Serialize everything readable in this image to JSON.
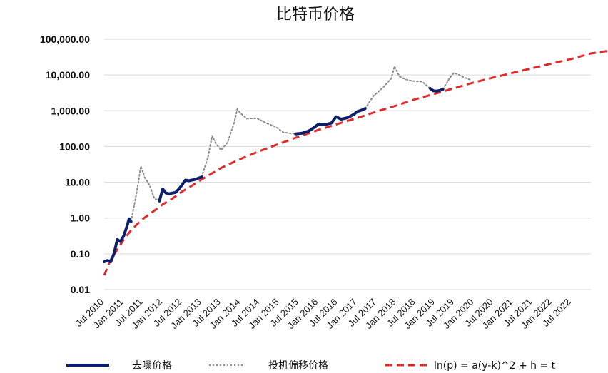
{
  "chart_data": {
    "type": "line",
    "title": "比特币价格",
    "xlabel": "",
    "ylabel": "",
    "y_scale": "log",
    "ylim": [
      0.01,
      100000
    ],
    "x_range": [
      "2010-07-01",
      "2023-01-01"
    ],
    "grid": "horizontal",
    "legend_position": "bottom",
    "y_ticks": [
      {
        "value": 0.01,
        "label": "0.01"
      },
      {
        "value": 0.1,
        "label": "0.10"
      },
      {
        "value": 1,
        "label": "1.00"
      },
      {
        "value": 10,
        "label": "10.00"
      },
      {
        "value": 100,
        "label": "100.00"
      },
      {
        "value": 1000,
        "label": "1,000.00"
      },
      {
        "value": 10000,
        "label": "10,000.00"
      },
      {
        "value": 100000,
        "label": "100,000.00"
      }
    ],
    "x_ticks": [
      {
        "date": "2010-07-01",
        "label": "Jul 2010"
      },
      {
        "date": "2011-01-01",
        "label": "Jan 2011"
      },
      {
        "date": "2011-07-01",
        "label": "Jul 2011"
      },
      {
        "date": "2012-01-01",
        "label": "Jan 2012"
      },
      {
        "date": "2012-07-01",
        "label": "Jul 2012"
      },
      {
        "date": "2013-01-01",
        "label": "Jan 2013"
      },
      {
        "date": "2013-07-01",
        "label": "Jul 2013"
      },
      {
        "date": "2014-01-01",
        "label": "Jan 2014"
      },
      {
        "date": "2014-07-01",
        "label": "Jul 2014"
      },
      {
        "date": "2015-01-01",
        "label": "Jan 2015"
      },
      {
        "date": "2015-07-01",
        "label": "Jul 2015"
      },
      {
        "date": "2016-01-01",
        "label": "Jan 2016"
      },
      {
        "date": "2016-07-01",
        "label": "Jul 2016"
      },
      {
        "date": "2017-01-01",
        "label": "Jan 2017"
      },
      {
        "date": "2017-07-01",
        "label": "Jul 2017"
      },
      {
        "date": "2018-01-01",
        "label": "Jan 2018"
      },
      {
        "date": "2018-07-01",
        "label": "Jul 2018"
      },
      {
        "date": "2019-01-01",
        "label": "Jan 2019"
      },
      {
        "date": "2019-07-01",
        "label": "Jul 2019"
      },
      {
        "date": "2020-01-01",
        "label": "Jan 2020"
      },
      {
        "date": "2020-07-01",
        "label": "Jul 2020"
      },
      {
        "date": "2021-01-01",
        "label": "Jan 2021"
      },
      {
        "date": "2021-07-01",
        "label": "Jul 2021"
      },
      {
        "date": "2022-01-01",
        "label": "Jan 2022"
      },
      {
        "date": "2022-07-01",
        "label": "Jul 2022"
      }
    ],
    "series": [
      {
        "name": "去噪价格",
        "style": "solid-thick",
        "color": "#0d1f6b",
        "segments": [
          [
            [
              "2010-07-01",
              0.06
            ],
            [
              "2010-08-01",
              0.065
            ],
            [
              "2010-09-01",
              0.06
            ],
            [
              "2010-10-01",
              0.1
            ],
            [
              "2010-11-01",
              0.25
            ],
            [
              "2010-12-01",
              0.22
            ],
            [
              "2011-01-01",
              0.32
            ],
            [
              "2011-02-01",
              0.6
            ],
            [
              "2011-02-20",
              0.95
            ],
            [
              "2011-03-10",
              0.8
            ]
          ],
          [
            [
              "2011-12-01",
              3.0
            ],
            [
              "2012-01-01",
              6.5
            ],
            [
              "2012-02-01",
              5.0
            ],
            [
              "2012-03-01",
              4.8
            ],
            [
              "2012-04-01",
              5.0
            ],
            [
              "2012-05-01",
              5.2
            ],
            [
              "2012-06-01",
              6.5
            ],
            [
              "2012-07-01",
              8.5
            ],
            [
              "2012-08-01",
              11.5
            ],
            [
              "2012-09-01",
              11.0
            ],
            [
              "2012-10-01",
              11.5
            ],
            [
              "2012-11-01",
              12.0
            ],
            [
              "2012-12-01",
              13.0
            ],
            [
              "2013-01-01",
              14.0
            ]
          ],
          [
            [
              "2015-06-01",
              225
            ],
            [
              "2015-08-01",
              235
            ],
            [
              "2015-10-01",
              270
            ],
            [
              "2015-11-15",
              330
            ],
            [
              "2016-01-01",
              420
            ],
            [
              "2016-03-01",
              410
            ],
            [
              "2016-05-01",
              450
            ],
            [
              "2016-06-15",
              680
            ],
            [
              "2016-08-01",
              580
            ],
            [
              "2016-10-01",
              640
            ],
            [
              "2016-12-01",
              800
            ],
            [
              "2017-01-01",
              950
            ],
            [
              "2017-02-15",
              1050
            ],
            [
              "2017-03-15",
              1150
            ]
          ],
          [
            [
              "2018-11-15",
              4200
            ],
            [
              "2018-12-15",
              3600
            ],
            [
              "2019-01-15",
              3550
            ],
            [
              "2019-02-15",
              3700
            ],
            [
              "2019-03-15",
              4000
            ]
          ]
        ]
      },
      {
        "name": "投机偏移价格",
        "style": "dotted",
        "color": "#8c8c8c",
        "segments": [
          [
            [
              "2011-03-10",
              0.8
            ],
            [
              "2011-05-01",
              5.0
            ],
            [
              "2011-06-10",
              28.0
            ],
            [
              "2011-07-15",
              14.0
            ],
            [
              "2011-09-01",
              8.0
            ],
            [
              "2011-10-15",
              3.5
            ],
            [
              "2011-12-01",
              3.0
            ]
          ],
          [
            [
              "2013-01-01",
              14.0
            ],
            [
              "2013-03-01",
              50
            ],
            [
              "2013-04-10",
              200
            ],
            [
              "2013-05-15",
              120
            ],
            [
              "2013-07-01",
              80
            ],
            [
              "2013-09-01",
              130
            ],
            [
              "2013-11-01",
              450
            ],
            [
              "2013-12-01",
              1100
            ],
            [
              "2014-01-01",
              850
            ],
            [
              "2014-03-01",
              600
            ],
            [
              "2014-06-01",
              620
            ],
            [
              "2014-09-01",
              450
            ],
            [
              "2014-12-01",
              350
            ],
            [
              "2015-02-01",
              250
            ],
            [
              "2015-06-01",
              225
            ]
          ],
          [
            [
              "2017-03-15",
              1150
            ],
            [
              "2017-06-01",
              2600
            ],
            [
              "2017-09-01",
              4500
            ],
            [
              "2017-11-15",
              8000
            ],
            [
              "2017-12-15",
              17500
            ],
            [
              "2018-02-01",
              9000
            ],
            [
              "2018-04-01",
              7500
            ],
            [
              "2018-06-01",
              6800
            ],
            [
              "2018-09-01",
              6500
            ],
            [
              "2018-11-15",
              4200
            ]
          ],
          [
            [
              "2019-03-15",
              4000
            ],
            [
              "2019-05-15",
              8000
            ],
            [
              "2019-06-25",
              11500
            ],
            [
              "2019-08-01",
              10500
            ],
            [
              "2019-10-01",
              8500
            ],
            [
              "2019-12-01",
              7300
            ]
          ]
        ]
      },
      {
        "name": "ln(p) = a(y-k)^2 + h = t",
        "style": "dashed",
        "color": "#e02b2b",
        "points": [
          [
            "2010-07-01",
            0.025
          ],
          [
            "2010-09-01",
            0.07
          ],
          [
            "2010-11-01",
            0.13
          ],
          [
            "2011-01-01",
            0.25
          ],
          [
            "2011-03-01",
            0.42
          ],
          [
            "2011-05-01",
            0.65
          ],
          [
            "2011-07-01",
            0.95
          ],
          [
            "2011-10-01",
            1.5
          ],
          [
            "2012-01-01",
            2.4
          ],
          [
            "2012-04-01",
            3.5
          ],
          [
            "2012-07-01",
            5.5
          ],
          [
            "2012-10-01",
            8.0
          ],
          [
            "2013-01-01",
            12
          ],
          [
            "2013-07-01",
            25
          ],
          [
            "2014-01-01",
            45
          ],
          [
            "2014-07-01",
            75
          ],
          [
            "2015-01-01",
            120
          ],
          [
            "2015-07-01",
            190
          ],
          [
            "2016-01-01",
            290
          ],
          [
            "2016-07-01",
            430
          ],
          [
            "2017-01-01",
            630
          ],
          [
            "2017-07-01",
            950
          ],
          [
            "2018-01-01",
            1400
          ],
          [
            "2018-07-01",
            2100
          ],
          [
            "2019-01-01",
            3000
          ],
          [
            "2019-07-01",
            4300
          ],
          [
            "2020-01-01",
            6200
          ],
          [
            "2020-07-01",
            8500
          ],
          [
            "2021-01-01",
            11500
          ],
          [
            "2021-07-01",
            15500
          ],
          [
            "2022-01-01",
            21000
          ],
          [
            "2022-07-01",
            28000
          ],
          [
            "2023-01-01",
            40000
          ],
          [
            "2023-07-01",
            48000
          ]
        ]
      }
    ]
  }
}
